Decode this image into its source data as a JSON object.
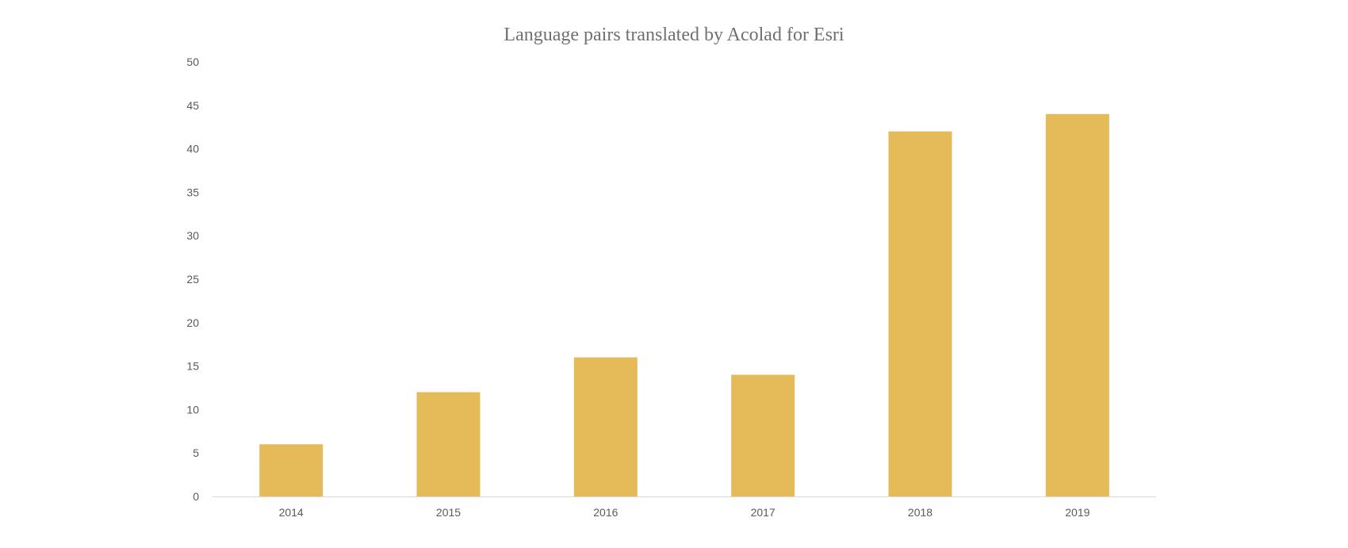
{
  "chart_data": {
    "type": "bar",
    "title": "Language pairs translated by Acolad for Esri",
    "xlabel": "",
    "ylabel": "",
    "categories": [
      "2014",
      "2015",
      "2016",
      "2017",
      "2018",
      "2019"
    ],
    "values": [
      6,
      12,
      16,
      14,
      42,
      44
    ],
    "ylim": [
      0,
      50
    ],
    "yticks": [
      0,
      5,
      10,
      15,
      20,
      25,
      30,
      35,
      40,
      45,
      50
    ],
    "grid": false,
    "legend": "none",
    "bar_color": "#E4BB58",
    "axis_color": "#D9D9D9"
  }
}
